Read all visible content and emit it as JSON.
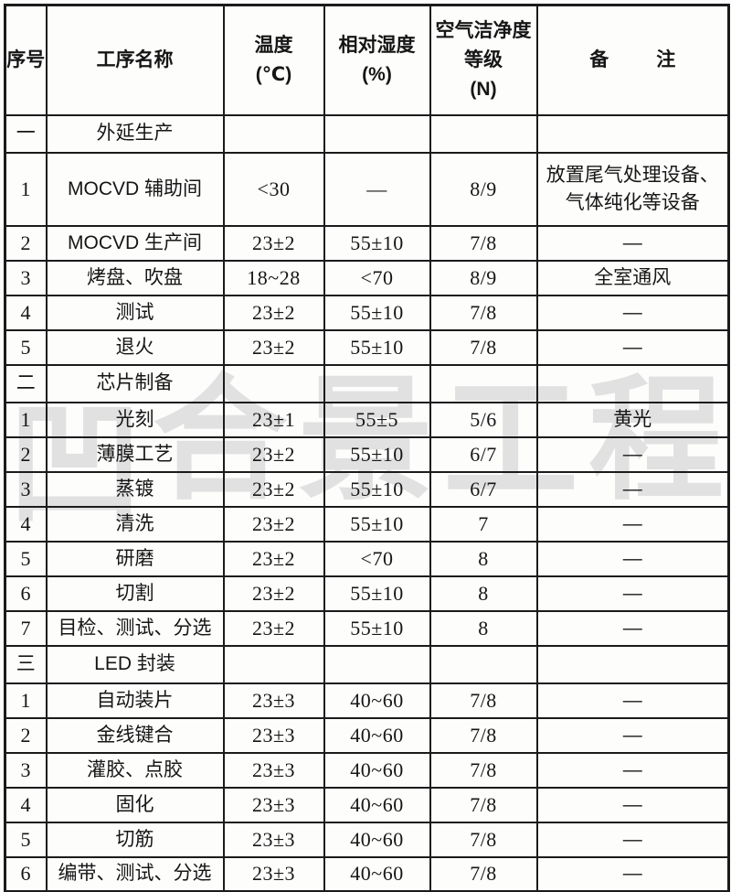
{
  "page": {
    "background": "#fdfdfc",
    "text_color": "#161616",
    "border_color": "#1b1b1b"
  },
  "watermark": {
    "logo_glyph": "凹",
    "text": [
      "合",
      "景",
      "工",
      "程"
    ],
    "color": "#e1e1e1"
  },
  "table": {
    "header": {
      "serial": [
        "序号"
      ],
      "process": [
        "工序名称"
      ],
      "temperature": [
        "温度",
        "(℃)"
      ],
      "humidity": [
        "相对湿度",
        "(%)"
      ],
      "cleanliness": [
        "空气洁净度",
        "等级",
        "(N)"
      ],
      "remark_left": "备",
      "remark_right": "注"
    },
    "rows": [
      {
        "kind": "section",
        "no": "一",
        "name": "外延生产"
      },
      {
        "kind": "data",
        "no": "1",
        "name": "MOCVD 辅助间",
        "temp": "<30",
        "hum": "—",
        "clean": "8/9",
        "remark": [
          "放置尾气处理设备、",
          "气体纯化等设备"
        ]
      },
      {
        "kind": "data",
        "no": "2",
        "name": "MOCVD 生产间",
        "temp": "23±2",
        "hum": "55±10",
        "clean": "7/8",
        "remark": [
          "—"
        ]
      },
      {
        "kind": "data",
        "no": "3",
        "name": "烤盘、吹盘",
        "temp": "18~28",
        "hum": "<70",
        "clean": "8/9",
        "remark": [
          "全室通风"
        ]
      },
      {
        "kind": "data",
        "no": "4",
        "name": "测试",
        "temp": "23±2",
        "hum": "55±10",
        "clean": "7/8",
        "remark": [
          "—"
        ]
      },
      {
        "kind": "data",
        "no": "5",
        "name": "退火",
        "temp": "23±2",
        "hum": "55±10",
        "clean": "7/8",
        "remark": [
          "—"
        ]
      },
      {
        "kind": "section",
        "no": "二",
        "name": "芯片制备"
      },
      {
        "kind": "data",
        "no": "1",
        "name": "光刻",
        "temp": "23±1",
        "hum": "55±5",
        "clean": "5/6",
        "remark": [
          "黄光"
        ]
      },
      {
        "kind": "data",
        "no": "2",
        "name": "薄膜工艺",
        "temp": "23±2",
        "hum": "55±10",
        "clean": "6/7",
        "remark": [
          "—"
        ]
      },
      {
        "kind": "data",
        "no": "3",
        "name": "蒸镀",
        "temp": "23±2",
        "hum": "55±10",
        "clean": "6/7",
        "remark": [
          "—"
        ]
      },
      {
        "kind": "data",
        "no": "4",
        "name": "清洗",
        "temp": "23±2",
        "hum": "55±10",
        "clean": "7",
        "remark": [
          "—"
        ]
      },
      {
        "kind": "data",
        "no": "5",
        "name": "研磨",
        "temp": "23±2",
        "hum": "<70",
        "clean": "8",
        "remark": [
          "—"
        ]
      },
      {
        "kind": "data",
        "no": "6",
        "name": "切割",
        "temp": "23±2",
        "hum": "55±10",
        "clean": "8",
        "remark": [
          "—"
        ]
      },
      {
        "kind": "data",
        "no": "7",
        "name": "目检、测试、分选",
        "temp": "23±2",
        "hum": "55±10",
        "clean": "8",
        "remark": [
          "—"
        ]
      },
      {
        "kind": "section",
        "no": "三",
        "name": "LED 封装"
      },
      {
        "kind": "data",
        "no": "1",
        "name": "自动装片",
        "temp": "23±3",
        "hum": "40~60",
        "clean": "7/8",
        "remark": [
          "—"
        ]
      },
      {
        "kind": "data",
        "no": "2",
        "name": "金线键合",
        "temp": "23±3",
        "hum": "40~60",
        "clean": "7/8",
        "remark": [
          "—"
        ]
      },
      {
        "kind": "data",
        "no": "3",
        "name": "灌胶、点胶",
        "temp": "23±3",
        "hum": "40~60",
        "clean": "7/8",
        "remark": [
          "—"
        ]
      },
      {
        "kind": "data",
        "no": "4",
        "name": "固化",
        "temp": "23±3",
        "hum": "40~60",
        "clean": "7/8",
        "remark": [
          "—"
        ]
      },
      {
        "kind": "data",
        "no": "5",
        "name": "切筋",
        "temp": "23±3",
        "hum": "40~60",
        "clean": "7/8",
        "remark": [
          "—"
        ]
      },
      {
        "kind": "data",
        "no": "6",
        "name": "编带、测试、分选",
        "temp": "23±3",
        "hum": "40~60",
        "clean": "7/8",
        "remark": [
          "—"
        ]
      }
    ]
  }
}
